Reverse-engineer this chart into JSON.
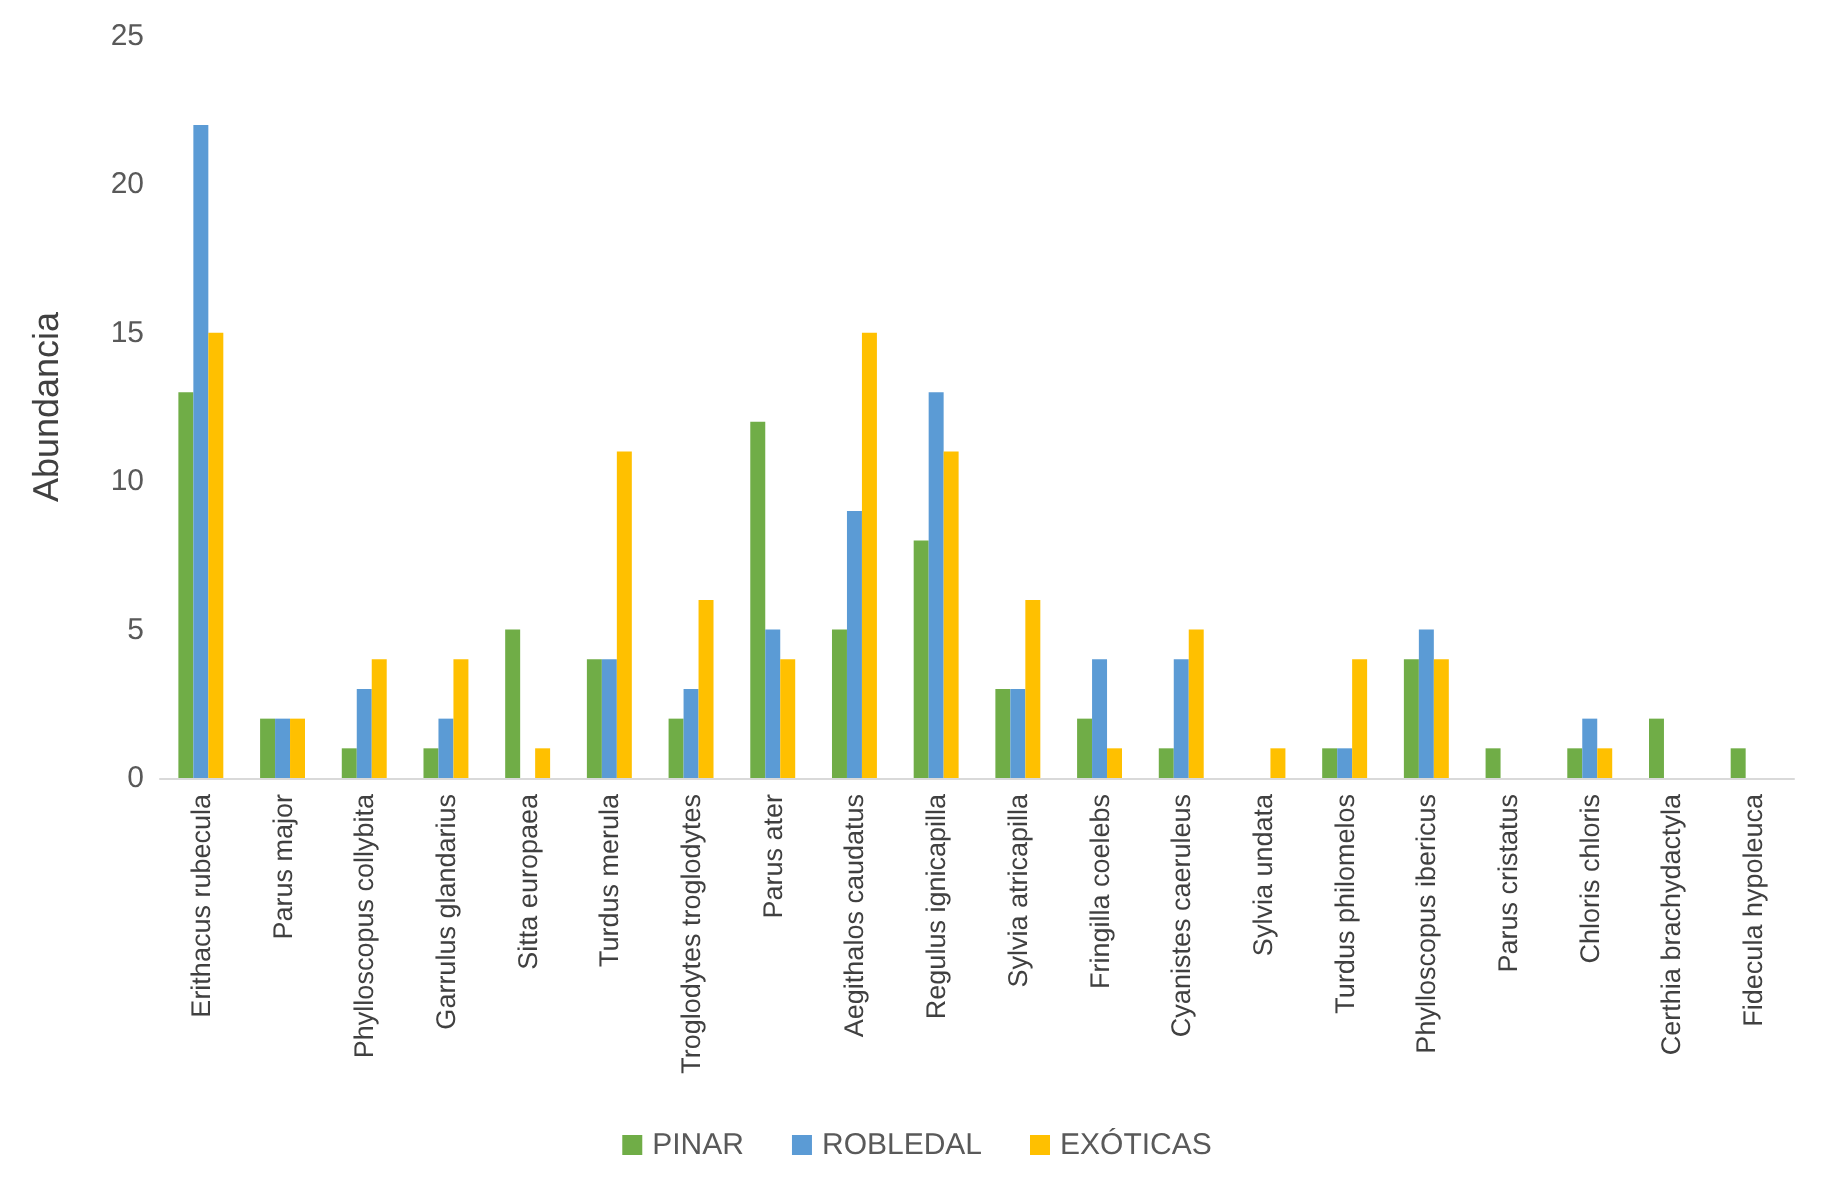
{
  "chart_data": {
    "type": "bar",
    "ylabel": "Abundancia",
    "categories": [
      "Erithacus rubecula",
      "Parus major",
      "Phylloscopus collybita",
      "Garrulus glandarius",
      "Sitta europaea",
      "Turdus merula",
      "Troglodytes troglodytes",
      "Parus ater",
      "Aegithalos caudatus",
      "Regulus ignicapilla",
      "Sylvia atricapilla",
      "Fringilla coelebs",
      "Cyanistes caeruleus",
      "Sylvia undata",
      "Turdus philomelos",
      "Phylloscopus ibericus",
      "Parus cristatus",
      "Chloris chloris",
      "Certhia brachydactyla",
      "Fidecula hypoleuca"
    ],
    "series": [
      {
        "name": "PINAR",
        "color": "#70ad47",
        "values": [
          13,
          2,
          1,
          1,
          5,
          4,
          2,
          12,
          5,
          8,
          3,
          2,
          1,
          0,
          1,
          4,
          1,
          1,
          2,
          1
        ]
      },
      {
        "name": "ROBLEDAL",
        "color": "#5b9bd5",
        "values": [
          22,
          2,
          3,
          2,
          0,
          4,
          3,
          5,
          9,
          13,
          3,
          4,
          4,
          0,
          1,
          5,
          0,
          2,
          0,
          0
        ]
      },
      {
        "name": "EXÓTICAS",
        "color": "#ffc000",
        "values": [
          15,
          2,
          4,
          4,
          1,
          11,
          6,
          4,
          15,
          11,
          6,
          1,
          5,
          1,
          4,
          4,
          0,
          1,
          0,
          0
        ]
      }
    ],
    "ylim": [
      0,
      25
    ],
    "yticks": [
      0,
      5,
      10,
      15,
      20,
      25
    ],
    "grid": false,
    "legend": "bottom"
  }
}
